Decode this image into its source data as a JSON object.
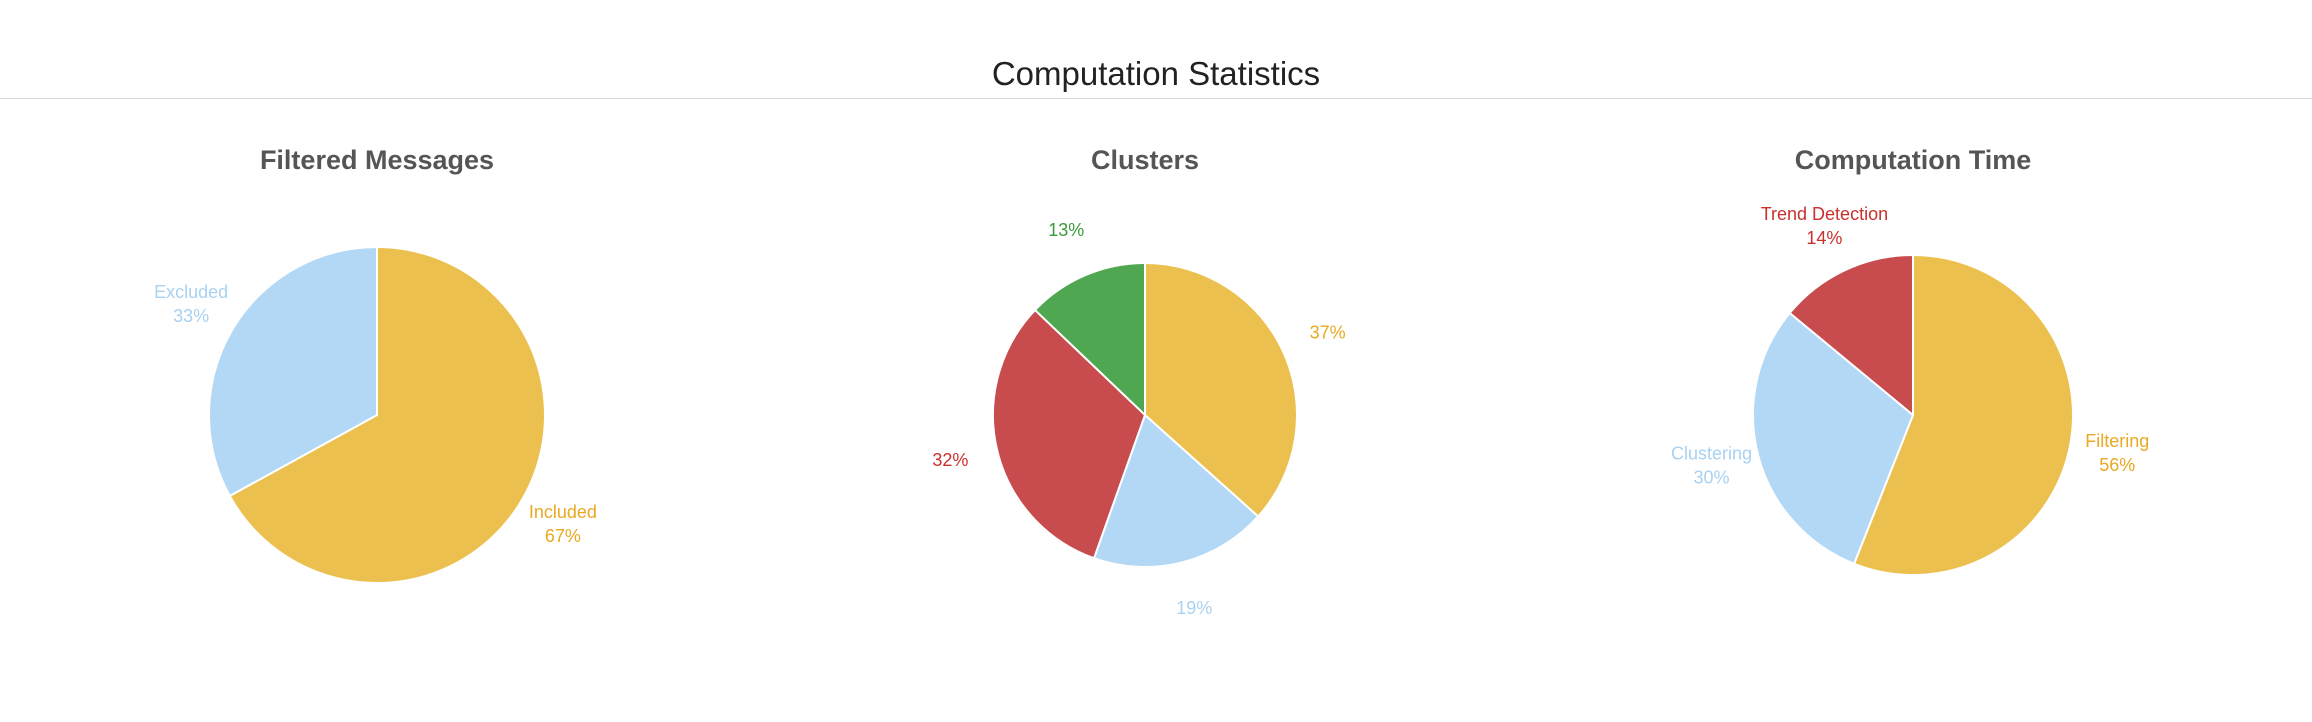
{
  "header": {
    "title": "Computation Statistics"
  },
  "chart_data": [
    {
      "type": "pie",
      "title": "Filtered Messages",
      "slices": [
        {
          "label": "Included",
          "value": 67,
          "value_label": "67%",
          "color": "#ebc04e"
        },
        {
          "label": "Excluded",
          "value": 33,
          "value_label": "33%",
          "color": "#b2d8f6"
        }
      ]
    },
    {
      "type": "pie",
      "title": "Clusters",
      "slices": [
        {
          "label": "",
          "value": 37,
          "value_label": "37%",
          "color": "#ebc04e"
        },
        {
          "label": "",
          "value": 19,
          "value_label": "19%",
          "color": "#b2d8f6"
        },
        {
          "label": "",
          "value": 32,
          "value_label": "32%",
          "color": "#c84b4e"
        },
        {
          "label": "",
          "value": 13,
          "value_label": "13%",
          "color": "#50a751"
        }
      ]
    },
    {
      "type": "pie",
      "title": "Computation Time",
      "slices": [
        {
          "label": "Filtering",
          "value": 56,
          "value_label": "56%",
          "color": "#ebc04e"
        },
        {
          "label": "Clustering",
          "value": 30,
          "value_label": "30%",
          "color": "#b2d8f6"
        },
        {
          "label": "Trend Detection",
          "value": 14,
          "value_label": "14%",
          "color": "#c84b4e"
        }
      ]
    }
  ],
  "label_colors": {
    "#ebc04e": "#e9a920",
    "#b2d8f6": "#a8d2f2",
    "#c84b4e": "#c9302c",
    "#50a751": "#3a9a3a"
  }
}
